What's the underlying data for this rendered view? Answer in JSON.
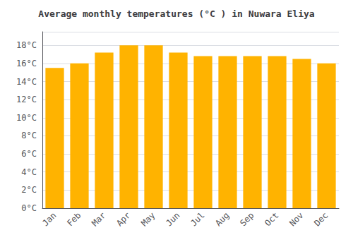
{
  "chart_data": {
    "type": "bar",
    "title": "Average monthly temperatures (°C ) in Nuwara Eliya",
    "categories": [
      "Jan",
      "Feb",
      "Mar",
      "Apr",
      "May",
      "Jun",
      "Jul",
      "Aug",
      "Sep",
      "Oct",
      "Nov",
      "Dec"
    ],
    "values": [
      15.5,
      16.0,
      17.2,
      18.0,
      18.0,
      17.2,
      16.8,
      16.8,
      16.8,
      16.8,
      16.5,
      16.0
    ],
    "color": "#FFB300",
    "ylim": [
      0,
      19.5
    ],
    "yticks": [
      {
        "value": 0,
        "label": "0°C"
      },
      {
        "value": 2,
        "label": "2°C"
      },
      {
        "value": 4,
        "label": "4°C"
      },
      {
        "value": 6,
        "label": "6°C"
      },
      {
        "value": 8,
        "label": "8°C"
      },
      {
        "value": 10,
        "label": "10°C"
      },
      {
        "value": 12,
        "label": "12°C"
      },
      {
        "value": 14,
        "label": "14°C"
      },
      {
        "value": 16,
        "label": "16°C"
      },
      {
        "value": 18,
        "label": "18°C"
      }
    ],
    "grid": true
  }
}
